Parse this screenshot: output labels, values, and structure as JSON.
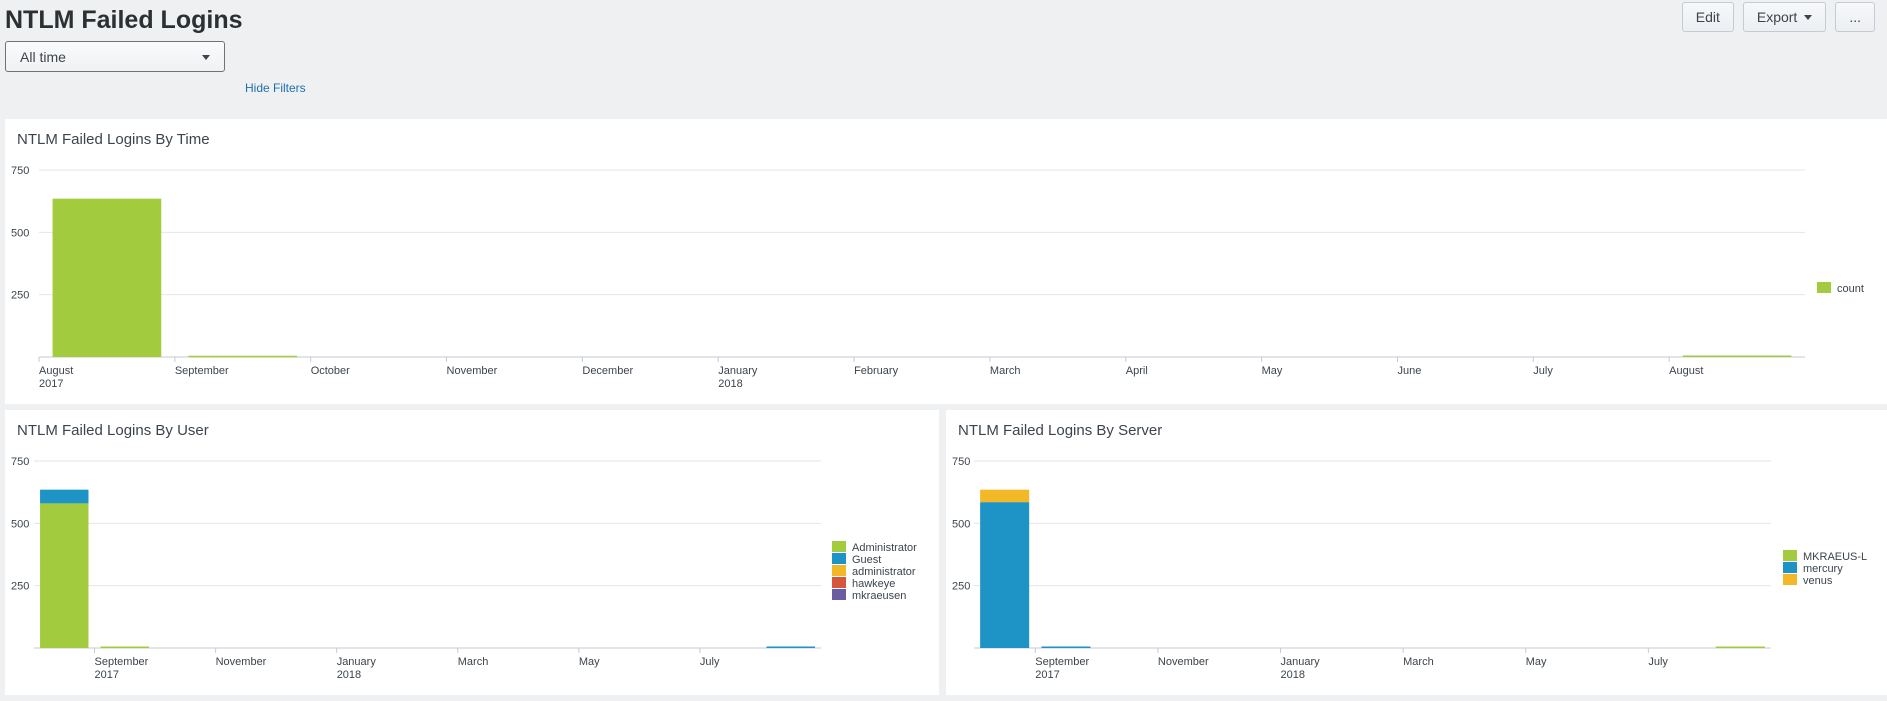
{
  "dashboard": {
    "title": "NTLM Failed Logins"
  },
  "toolbar": {
    "edit_label": "Edit",
    "export_label": "Export",
    "more_label": "..."
  },
  "filters": {
    "time_range": "All time",
    "hide_filters_label": "Hide Filters"
  },
  "colors": {
    "green": "#a2cc3e",
    "blue": "#1e93c6",
    "yellow": "#f2b827",
    "red": "#d6563c",
    "purple": "#6a5c9e",
    "background": "#eef0f2"
  },
  "panels": [
    {
      "title": "NTLM Failed Logins By Time"
    },
    {
      "title": "NTLM Failed Logins By User"
    },
    {
      "title": "NTLM Failed Logins By Server"
    }
  ],
  "chart_data": [
    {
      "type": "bar",
      "title": "NTLM Failed Logins By Time",
      "x_ticks": [
        [
          "August",
          "2017"
        ],
        [
          "September"
        ],
        [
          "October"
        ],
        [
          "November"
        ],
        [
          "December"
        ],
        [
          "January",
          "2018"
        ],
        [
          "February"
        ],
        [
          "March"
        ],
        [
          "April"
        ],
        [
          "May"
        ],
        [
          "June"
        ],
        [
          "July"
        ],
        [
          "August"
        ]
      ],
      "y_ticks": [
        250,
        500,
        750
      ],
      "ylim": [
        0,
        750
      ],
      "stacked": false,
      "categories": [
        "2017-08",
        "2017-09",
        "2017-10",
        "2017-11",
        "2017-12",
        "2018-01",
        "2018-02",
        "2018-03",
        "2018-04",
        "2018-05",
        "2018-06",
        "2018-07",
        "2018-08"
      ],
      "series": [
        {
          "name": "count",
          "color": "#a2cc3e",
          "values": [
            635,
            5,
            0,
            0,
            0,
            0,
            0,
            0,
            0,
            0,
            0,
            0,
            6
          ]
        }
      ],
      "legend_position": "right",
      "grid": true
    },
    {
      "type": "bar",
      "title": "NTLM Failed Logins By User",
      "x_ticks": [
        [
          "September",
          "2017"
        ],
        [
          "November"
        ],
        [
          "January",
          "2018"
        ],
        [
          "March"
        ],
        [
          "May"
        ],
        [
          "July"
        ]
      ],
      "y_ticks": [
        250,
        500,
        750
      ],
      "ylim": [
        0,
        750
      ],
      "stacked": true,
      "categories": [
        "2017-08",
        "2017-09",
        "2017-10",
        "2017-11",
        "2017-12",
        "2018-01",
        "2018-02",
        "2018-03",
        "2018-04",
        "2018-05",
        "2018-06",
        "2018-07",
        "2018-08"
      ],
      "series": [
        {
          "name": "Administrator",
          "color": "#a2cc3e",
          "values": [
            580,
            6,
            0,
            0,
            0,
            0,
            0,
            0,
            0,
            0,
            0,
            0,
            0
          ]
        },
        {
          "name": "Guest",
          "color": "#1e93c6",
          "values": [
            55,
            0,
            0,
            0,
            0,
            0,
            0,
            0,
            0,
            0,
            0,
            0,
            6
          ]
        },
        {
          "name": "administrator",
          "color": "#f2b827",
          "values": [
            0,
            0,
            0,
            0,
            0,
            0,
            0,
            0,
            0,
            0,
            0,
            0,
            0
          ]
        },
        {
          "name": "hawkeye",
          "color": "#d6563c",
          "values": [
            0,
            0,
            0,
            0,
            0,
            0,
            0,
            0,
            0,
            0,
            0,
            0,
            0
          ]
        },
        {
          "name": "mkraeusen",
          "color": "#6a5c9e",
          "values": [
            0,
            0,
            0,
            0,
            0,
            0,
            0,
            0,
            0,
            0,
            0,
            0,
            0
          ]
        }
      ],
      "legend_position": "right",
      "grid": true
    },
    {
      "type": "bar",
      "title": "NTLM Failed Logins By Server",
      "x_ticks": [
        [
          "September",
          "2017"
        ],
        [
          "November"
        ],
        [
          "January",
          "2018"
        ],
        [
          "March"
        ],
        [
          "May"
        ],
        [
          "July"
        ]
      ],
      "y_ticks": [
        250,
        500,
        750
      ],
      "ylim": [
        0,
        750
      ],
      "stacked": true,
      "categories": [
        "2017-08",
        "2017-09",
        "2017-10",
        "2017-11",
        "2017-12",
        "2018-01",
        "2018-02",
        "2018-03",
        "2018-04",
        "2018-05",
        "2018-06",
        "2018-07",
        "2018-08"
      ],
      "series": [
        {
          "name": "MKRAEUS-L",
          "color": "#a2cc3e",
          "values": [
            0,
            0,
            0,
            0,
            0,
            0,
            0,
            0,
            0,
            0,
            0,
            0,
            6
          ]
        },
        {
          "name": "mercury",
          "color": "#1e93c6",
          "values": [
            585,
            6,
            0,
            0,
            0,
            0,
            0,
            0,
            0,
            0,
            0,
            0,
            0
          ]
        },
        {
          "name": "venus",
          "color": "#f2b827",
          "values": [
            50,
            0,
            0,
            0,
            0,
            0,
            0,
            0,
            0,
            0,
            0,
            0,
            0
          ]
        }
      ],
      "legend_position": "right",
      "grid": true
    }
  ]
}
